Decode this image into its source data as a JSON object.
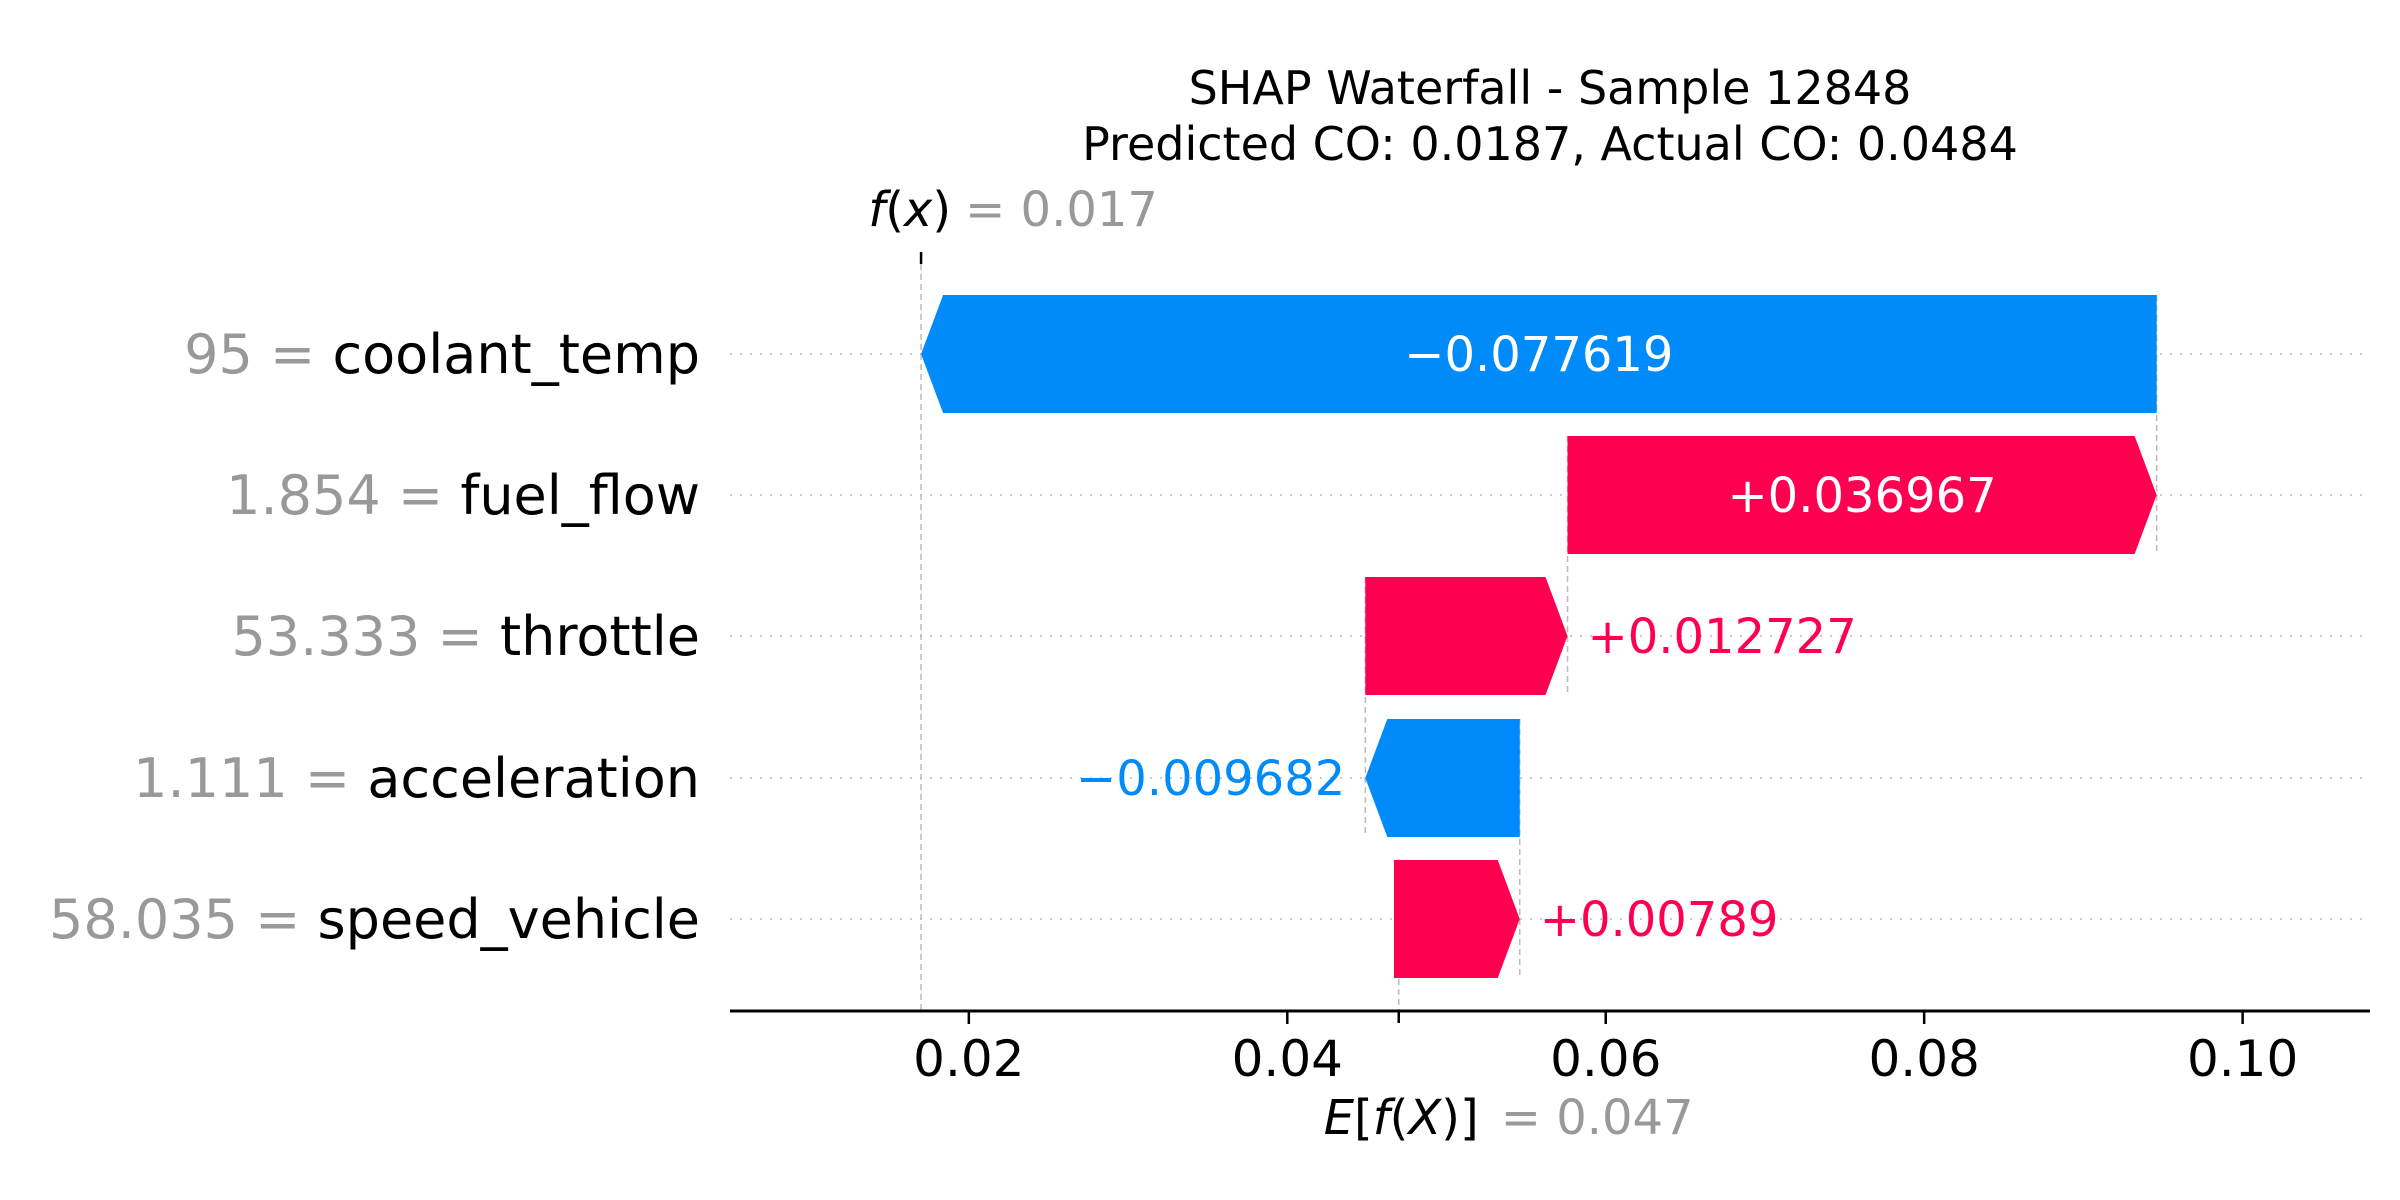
{
  "chart_data": {
    "type": "waterfall",
    "title": "SHAP Waterfall - Sample 12848",
    "subtitle": "Predicted CO: 0.0187, Actual CO: 0.0484",
    "fx_label": "f(x)",
    "fx_value": 0.017,
    "fx_value_text": "= 0.017",
    "base_label": "E[f(X)]",
    "base_value": 0.047,
    "base_value_text": "= 0.047",
    "xlim": [
      0.005,
      0.108
    ],
    "x_ticks": [
      0.02,
      0.04,
      0.06,
      0.08,
      0.1
    ],
    "x_tick_labels": [
      "0.02",
      "0.04",
      "0.06",
      "0.08",
      "0.10"
    ],
    "features": [
      {
        "value_text": "95",
        "name": "coolant_temp",
        "start": 0.0946,
        "end": 0.017,
        "shap": -0.077619,
        "shap_text": "−0.077619",
        "label_inside": true
      },
      {
        "value_text": "1.854",
        "name": "fuel_flow",
        "start": 0.0576,
        "end": 0.0946,
        "shap": 0.036967,
        "shap_text": "+0.036967",
        "label_inside": true
      },
      {
        "value_text": "53.333",
        "name": "throttle",
        "start": 0.0449,
        "end": 0.0576,
        "shap": 0.012727,
        "shap_text": "+0.012727",
        "label_inside": false
      },
      {
        "value_text": "1.111",
        "name": "acceleration",
        "start": 0.0546,
        "end": 0.0449,
        "shap": -0.009682,
        "shap_text": "−0.009682",
        "label_inside": false
      },
      {
        "value_text": "58.035",
        "name": "speed_vehicle",
        "start": 0.0467,
        "end": 0.0546,
        "shap": 0.00789,
        "shap_text": "+0.00789",
        "label_inside": false
      }
    ],
    "colors": {
      "positive": "#ff0051",
      "negative": "#008bfb",
      "gray_text": "#999999",
      "axis": "#000000"
    }
  }
}
